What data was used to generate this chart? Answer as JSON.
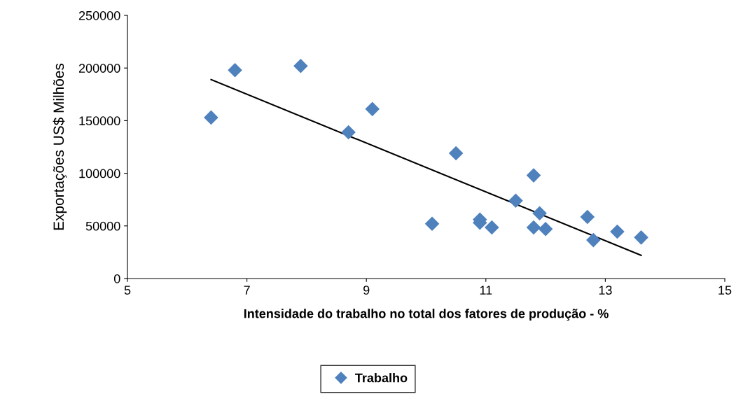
{
  "chart_data": {
    "type": "scatter",
    "xlabel": "Intensidade do trabalho no total dos fatores de produção - %",
    "ylabel": "Exportações US$ Milhões",
    "series": [
      {
        "name": "Trabalho",
        "color": "#4f81bd",
        "marker": "diamond",
        "x": [
          6.4,
          6.8,
          7.9,
          8.7,
          9.1,
          10.1,
          10.5,
          10.9,
          10.9,
          11.1,
          11.5,
          11.8,
          11.8,
          11.9,
          12.0,
          12.7,
          12.8,
          13.2,
          13.6
        ],
        "values": [
          153000,
          198000,
          202000,
          139000,
          161000,
          52000,
          119000,
          56000,
          53000,
          48500,
          74000,
          98000,
          48500,
          62000,
          47000,
          58500,
          36500,
          44500,
          39000
        ]
      },
      {
        "type": "line",
        "color": "#000000",
        "marker": "none",
        "x": [
          6.4,
          13.6
        ],
        "values": [
          189000,
          22000
        ]
      }
    ],
    "xlim": [
      5,
      15
    ],
    "xticks": [
      5,
      7,
      9,
      11,
      13,
      15
    ],
    "ylim": [
      0,
      250000
    ],
    "yticks": [
      0,
      50000,
      100000,
      150000,
      200000,
      250000
    ],
    "grid": false,
    "legend": "bottom"
  }
}
